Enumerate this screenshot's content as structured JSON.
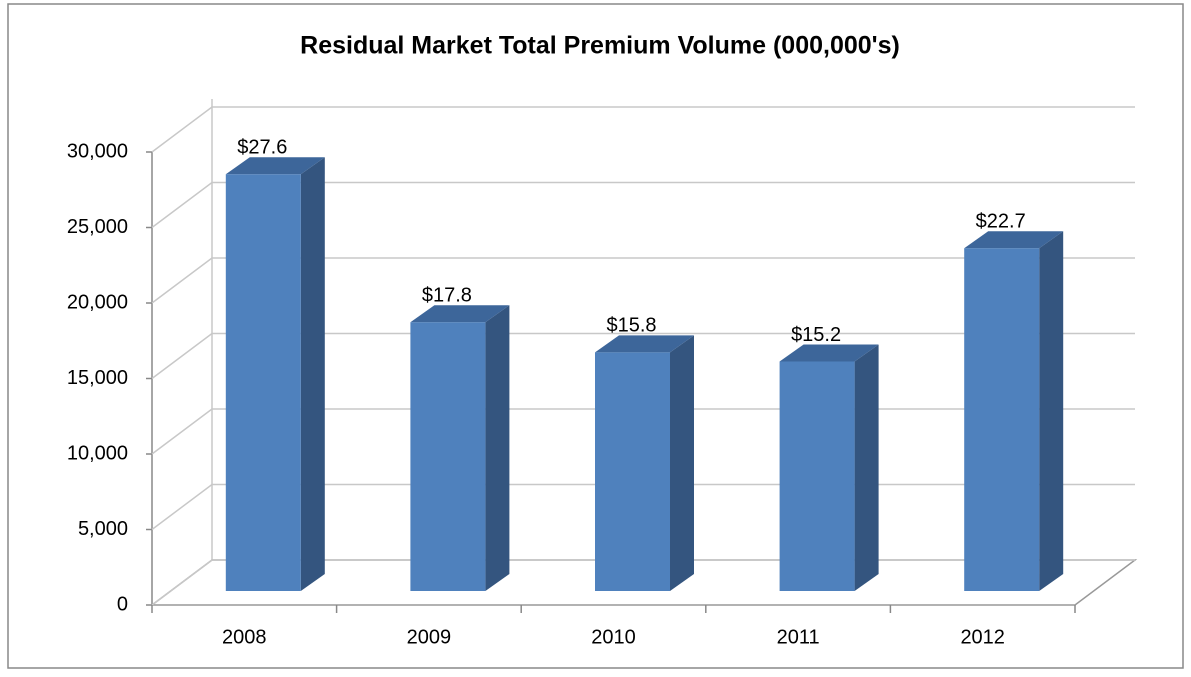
{
  "chart_data": {
    "type": "bar3d",
    "title": "Residual Market Total Premium Volume (000,000's)",
    "categories": [
      "2008",
      "2009",
      "2010",
      "2011",
      "2012"
    ],
    "values": [
      27600,
      17800,
      15800,
      15200,
      22700
    ],
    "value_labels": [
      "$27.6",
      "$17.8",
      "$15.8",
      "$15.2",
      "$22.7"
    ],
    "color": "#4f81bd",
    "ylim": [
      0,
      30000
    ],
    "yticks": [
      0,
      {
        "value": 5000,
        "label": "5,000"
      },
      {
        "value": 10000,
        "label": "10,000"
      },
      {
        "value": 15000,
        "label": "15,000"
      },
      {
        "value": 20000,
        "label": "20,000"
      },
      {
        "value": 25000,
        "label": "25,000"
      },
      {
        "value": 30000,
        "label": "30,000"
      }
    ],
    "grid": true
  }
}
